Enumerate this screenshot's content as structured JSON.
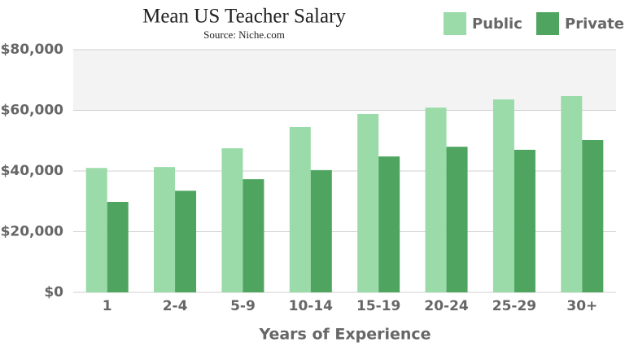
{
  "chart_data": {
    "type": "bar",
    "title": "Mean US Teacher Salary",
    "subtitle": "Source: Niche.com",
    "x_label": "Years of Experience",
    "categories": [
      "1",
      "2-4",
      "5-9",
      "10-14",
      "15-19",
      "20-24",
      "25-29",
      "30+"
    ],
    "series": [
      {
        "name": "Public",
        "color": "#9adba9",
        "values": [
          41000,
          41300,
          47500,
          54500,
          58800,
          60900,
          63600,
          64700
        ]
      },
      {
        "name": "Private",
        "color": "#4fa560",
        "values": [
          29800,
          33500,
          37300,
          40300,
          44800,
          48000,
          47000,
          50200
        ]
      }
    ],
    "ylim": [
      0,
      80000
    ],
    "yticks": [
      {
        "value": 0,
        "label": "$0"
      },
      {
        "value": 20000,
        "label": "$20,000"
      },
      {
        "value": 40000,
        "label": "$40,000"
      },
      {
        "value": 60000,
        "label": "$60,000"
      },
      {
        "value": 80000,
        "label": "$80,000"
      }
    ],
    "grid": true,
    "legend": "top-right"
  }
}
